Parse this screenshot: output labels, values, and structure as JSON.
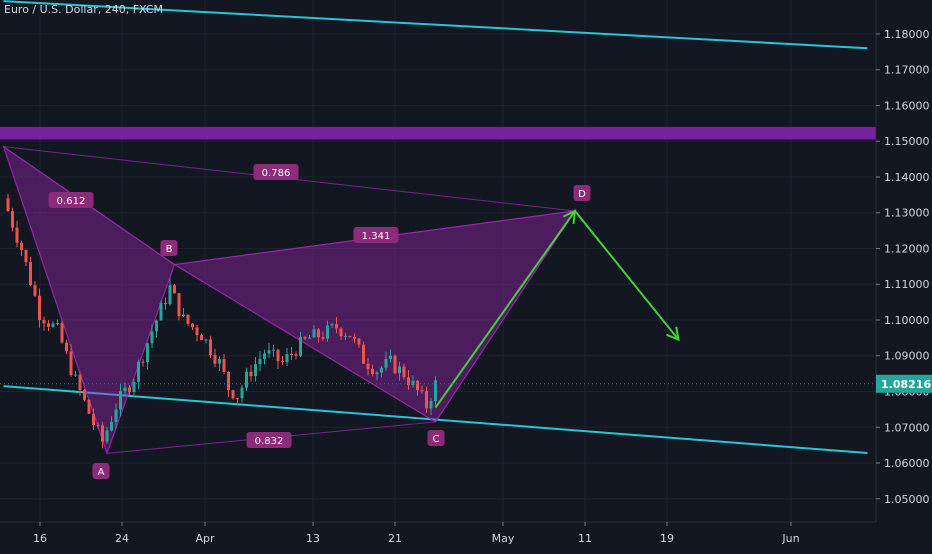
{
  "symbol": {
    "title": "Euro / U.S. Dollar, 240, FXCM"
  },
  "price_scale": {
    "labels": [
      "1.18000",
      "1.17000",
      "1.16000",
      "1.15000",
      "1.14000",
      "1.13000",
      "1.12000",
      "1.11000",
      "1.10000",
      "1.09000",
      "1.08000",
      "1.07000",
      "1.06000",
      "1.05000"
    ],
    "values": [
      1.18,
      1.17,
      1.16,
      1.15,
      1.14,
      1.13,
      1.12,
      1.11,
      1.1,
      1.09,
      1.08,
      1.07,
      1.06,
      1.05
    ],
    "current_price": "1.08216",
    "current_value": 1.08216,
    "current_color": "#26a69a"
  },
  "time_scale": {
    "labels": [
      "16",
      "24",
      "Apr",
      "13",
      "21",
      "May",
      "11",
      "19",
      "Jun"
    ]
  },
  "chart_data": {
    "type": "candlestick",
    "ylim": [
      1.0435,
      1.1895
    ],
    "pattern": {
      "color": "#9c27b0",
      "points": {
        "X": {
          "label": "",
          "t": -1,
          "price": 1.1485
        },
        "A": {
          "label": "A",
          "t": 22,
          "price": 1.0627
        },
        "B": {
          "label": "B",
          "t": 37,
          "price": 1.1155
        },
        "C": {
          "label": "C",
          "t": 95,
          "price": 1.0715
        },
        "D": {
          "label": "D",
          "t": 126,
          "price": 1.1305
        }
      },
      "ratios": [
        "0.612",
        "0.786",
        "1.341",
        "0.832"
      ]
    },
    "channel_upper": {
      "color": "#26c6da",
      "from": {
        "t": -1,
        "price": 1.1892
      },
      "to": {
        "t": 191,
        "price": 1.176
      }
    },
    "channel_lower": {
      "color": "#26c6da",
      "from": {
        "t": -1,
        "price": 1.0815
      },
      "to": {
        "t": 191,
        "price": 1.0628
      }
    },
    "resistance_zone": {
      "color": "#7b1fa2",
      "top": 1.154,
      "bottom": 1.1505
    },
    "projection": {
      "color": "#42d136",
      "points": [
        {
          "t": 95,
          "price": 1.0755
        },
        {
          "t": 126,
          "price": 1.1305
        },
        {
          "t": 149,
          "price": 1.0945
        }
      ]
    },
    "candles_anchors": [
      [
        0,
        1.134
      ],
      [
        4,
        1.12
      ],
      [
        8,
        1.102
      ],
      [
        12,
        1.097
      ],
      [
        16,
        1.083
      ],
      [
        20,
        1.071
      ],
      [
        22,
        1.066
      ],
      [
        25,
        1.076
      ],
      [
        29,
        1.084
      ],
      [
        33,
        1.097
      ],
      [
        37,
        1.109
      ],
      [
        40,
        1.1
      ],
      [
        44,
        1.096
      ],
      [
        48,
        1.088
      ],
      [
        50,
        1.081
      ],
      [
        52,
        1.079
      ],
      [
        55,
        1.086
      ],
      [
        58,
        1.091
      ],
      [
        62,
        1.088
      ],
      [
        65,
        1.092
      ],
      [
        68,
        1.095
      ],
      [
        71,
        1.096
      ],
      [
        74,
        1.098
      ],
      [
        77,
        1.096
      ],
      [
        80,
        1.089
      ],
      [
        83,
        1.086
      ],
      [
        86,
        1.088
      ],
      [
        89,
        1.085
      ],
      [
        92,
        1.08
      ],
      [
        94,
        1.076
      ],
      [
        96,
        1.082
      ]
    ]
  }
}
